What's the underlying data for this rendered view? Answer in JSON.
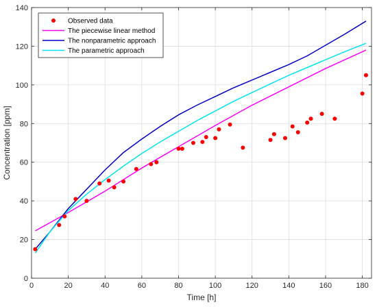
{
  "chart_data": {
    "type": "line",
    "title": "",
    "xlabel": "Time [h]",
    "ylabel": "Concentration [ppm]",
    "xlim": [
      0,
      185
    ],
    "ylim": [
      0,
      140
    ],
    "xticks": [
      0,
      20,
      40,
      60,
      80,
      100,
      120,
      140,
      160,
      180
    ],
    "yticks": [
      0,
      20,
      40,
      60,
      80,
      100,
      120,
      140
    ],
    "grid": true,
    "legend_position": "top-left",
    "legend": [
      {
        "label": "Observed data",
        "marker": "dot",
        "color": "#ff0000"
      },
      {
        "label": "The piecewise linear method",
        "marker": "line",
        "color": "#ff00ff"
      },
      {
        "label": "The nonparametric approach",
        "marker": "line",
        "color": "#0000cc"
      },
      {
        "label": "The parametric approach",
        "marker": "line",
        "color": "#00e5ee"
      }
    ],
    "series": [
      {
        "name": "Observed data",
        "kind": "scatter",
        "color": "#ff0000",
        "points": [
          [
            2,
            15
          ],
          [
            15,
            27.5
          ],
          [
            18,
            32
          ],
          [
            24,
            41
          ],
          [
            30,
            40
          ],
          [
            37,
            49
          ],
          [
            42,
            50.5
          ],
          [
            45,
            47
          ],
          [
            50,
            50
          ],
          [
            57,
            56.5
          ],
          [
            65,
            59
          ],
          [
            68,
            60
          ],
          [
            80,
            67
          ],
          [
            82,
            67
          ],
          [
            88,
            70
          ],
          [
            93,
            70.5
          ],
          [
            95,
            73
          ],
          [
            100,
            72.5
          ],
          [
            102,
            77
          ],
          [
            108,
            79.5
          ],
          [
            115,
            67.5
          ],
          [
            130,
            71.5
          ],
          [
            132,
            74.5
          ],
          [
            138,
            72.5
          ],
          [
            142,
            78.5
          ],
          [
            145,
            75.5
          ],
          [
            150,
            80.5
          ],
          [
            152,
            82.5
          ],
          [
            158,
            85
          ],
          [
            165,
            82.5
          ],
          [
            180,
            95.5
          ],
          [
            182,
            105
          ]
        ]
      },
      {
        "name": "The piecewise linear method",
        "kind": "line",
        "color": "#ff00ff",
        "points": [
          [
            2,
            24.5
          ],
          [
            20,
            34
          ],
          [
            40,
            45
          ],
          [
            60,
            57
          ],
          [
            80,
            68
          ],
          [
            100,
            79
          ],
          [
            120,
            89.5
          ],
          [
            140,
            99
          ],
          [
            160,
            108.5
          ],
          [
            182,
            118
          ]
        ]
      },
      {
        "name": "The nonparametric approach",
        "kind": "line",
        "color": "#0000cc",
        "points": [
          [
            2,
            15
          ],
          [
            10,
            24
          ],
          [
            20,
            36
          ],
          [
            30,
            46
          ],
          [
            40,
            56
          ],
          [
            50,
            65
          ],
          [
            60,
            72
          ],
          [
            70,
            78.5
          ],
          [
            80,
            84.5
          ],
          [
            90,
            89.5
          ],
          [
            100,
            94
          ],
          [
            110,
            98.5
          ],
          [
            120,
            102.5
          ],
          [
            130,
            106.5
          ],
          [
            140,
            110.5
          ],
          [
            150,
            115
          ],
          [
            160,
            120.5
          ],
          [
            170,
            126
          ],
          [
            182,
            133
          ]
        ]
      },
      {
        "name": "The parametric approach",
        "kind": "line",
        "color": "#00e5ee",
        "points": [
          [
            2,
            13
          ],
          [
            10,
            24
          ],
          [
            20,
            35
          ],
          [
            30,
            43.5
          ],
          [
            40,
            51
          ],
          [
            50,
            58
          ],
          [
            60,
            64.5
          ],
          [
            70,
            70.5
          ],
          [
            80,
            76
          ],
          [
            90,
            81.5
          ],
          [
            100,
            86.5
          ],
          [
            110,
            91.5
          ],
          [
            120,
            96
          ],
          [
            130,
            100.5
          ],
          [
            140,
            105
          ],
          [
            150,
            109
          ],
          [
            160,
            113
          ],
          [
            170,
            117
          ],
          [
            182,
            121.5
          ]
        ]
      }
    ]
  }
}
